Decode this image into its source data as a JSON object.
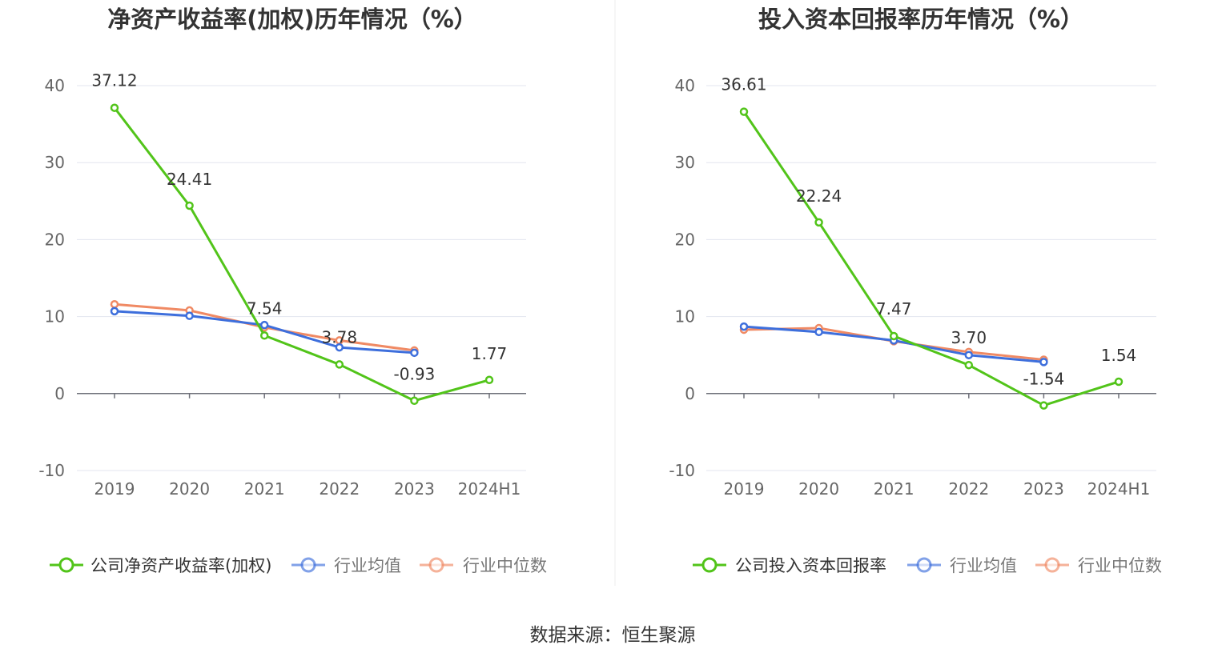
{
  "source_text": "数据来源：恒生聚源",
  "chart_data": [
    {
      "type": "line",
      "title": "净资产收益率(加权)历年情况（%）",
      "categories": [
        "2019",
        "2020",
        "2021",
        "2022",
        "2023",
        "2024H1"
      ],
      "ylim": [
        -10,
        40
      ],
      "yticks": [
        -10,
        0,
        10,
        20,
        30,
        40
      ],
      "grid": true,
      "legend_position": "bottom",
      "series": [
        {
          "name": "公司净资产收益率(加权)",
          "color": "#52c41a",
          "labeled": true,
          "values": [
            37.12,
            24.41,
            7.54,
            3.78,
            -0.93,
            1.77
          ],
          "labels": [
            "37.12",
            "24.41",
            "7.54",
            "3.78",
            "-0.93",
            "1.77"
          ]
        },
        {
          "name": "行业均值",
          "color": "#3e6fdc",
          "labeled": false,
          "values": [
            10.7,
            10.1,
            8.9,
            6.0,
            5.3,
            null
          ]
        },
        {
          "name": "行业中位数",
          "color": "#f08a64",
          "labeled": false,
          "values": [
            11.6,
            10.8,
            8.6,
            6.9,
            5.6,
            null
          ]
        }
      ]
    },
    {
      "type": "line",
      "title": "投入资本回报率历年情况（%）",
      "categories": [
        "2019",
        "2020",
        "2021",
        "2022",
        "2023",
        "2024H1"
      ],
      "ylim": [
        -10,
        40
      ],
      "yticks": [
        -10,
        0,
        10,
        20,
        30,
        40
      ],
      "grid": true,
      "legend_position": "bottom",
      "series": [
        {
          "name": "公司投入资本回报率",
          "color": "#52c41a",
          "labeled": true,
          "values": [
            36.61,
            22.24,
            7.47,
            3.7,
            -1.54,
            1.54
          ],
          "labels": [
            "36.61",
            "22.24",
            "7.47",
            "3.70",
            "-1.54",
            "1.54"
          ]
        },
        {
          "name": "行业均值",
          "color": "#3e6fdc",
          "labeled": false,
          "values": [
            8.7,
            8.0,
            6.9,
            5.0,
            4.1,
            null
          ]
        },
        {
          "name": "行业中位数",
          "color": "#f08a64",
          "labeled": false,
          "values": [
            8.3,
            8.5,
            6.8,
            5.4,
            4.4,
            null
          ]
        }
      ]
    }
  ]
}
